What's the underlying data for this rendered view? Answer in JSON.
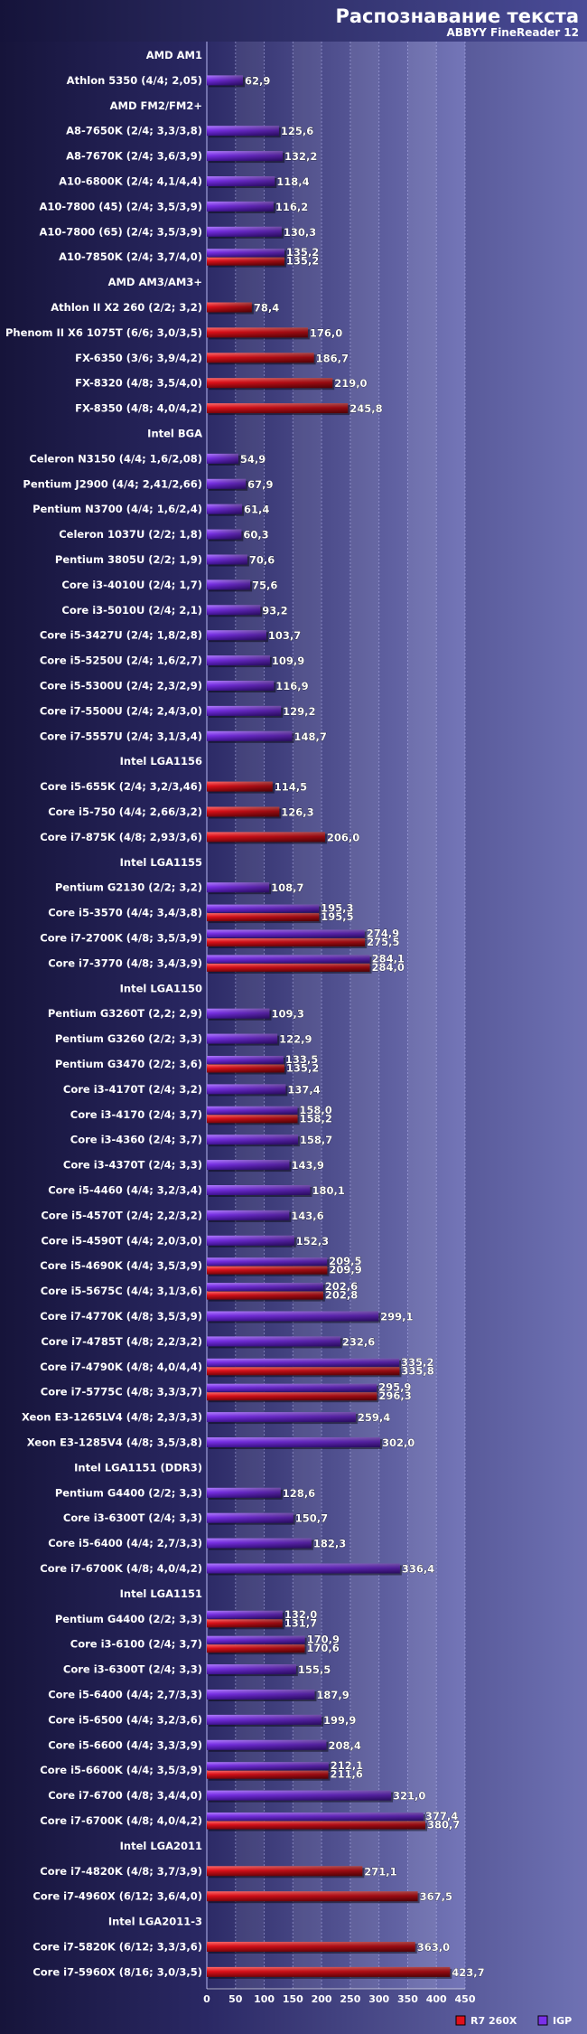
{
  "chart_data": {
    "type": "bar",
    "orientation": "horizontal",
    "title": "Распознавание текста",
    "subtitle": "ABBYY FineReader 12",
    "xlim": [
      0,
      450
    ],
    "xticks": [
      0,
      50,
      100,
      150,
      200,
      250,
      300,
      350,
      400,
      450
    ],
    "legend": [
      {
        "key": "r7",
        "name": "R7 260X",
        "color": "#e0101a"
      },
      {
        "key": "igp",
        "name": "IGP",
        "color": "#7a30e8"
      }
    ],
    "rows": [
      {
        "group": "AMD AM1"
      },
      {
        "label": "Athlon 5350 (4/4; 2,05)",
        "igp": 62.9
      },
      {
        "group": "AMD FM2/FM2+"
      },
      {
        "label": "A8-7650K (2/4; 3,3/3,8)",
        "igp": 125.6
      },
      {
        "label": "A8-7670K (2/4; 3,6/3,9)",
        "igp": 132.2
      },
      {
        "label": "A10-6800K (2/4; 4,1/4,4)",
        "igp": 118.4
      },
      {
        "label": "A10-7800 (45) (2/4; 3,5/3,9)",
        "igp": 116.2
      },
      {
        "label": "A10-7800 (65) (2/4; 3,5/3,9)",
        "igp": 130.3
      },
      {
        "label": "A10-7850K (2/4; 3,7/4,0)",
        "igp": 135.2,
        "r7": 135.2
      },
      {
        "group": "AMD AM3/AM3+"
      },
      {
        "label": "Athlon II X2 260 (2/2; 3,2)",
        "r7": 78.4
      },
      {
        "label": "Phenom II X6 1075T (6/6; 3,0/3,5)",
        "r7": 176.0
      },
      {
        "label": "FX-6350 (3/6; 3,9/4,2)",
        "r7": 186.7
      },
      {
        "label": "FX-8320 (4/8; 3,5/4,0)",
        "r7": 219.0
      },
      {
        "label": "FX-8350 (4/8; 4,0/4,2)",
        "r7": 245.8
      },
      {
        "group": "Intel BGA"
      },
      {
        "label": "Celeron N3150 (4/4; 1,6/2,08)",
        "igp": 54.9
      },
      {
        "label": "Pentium J2900 (4/4; 2,41/2,66)",
        "igp": 67.9
      },
      {
        "label": "Pentium N3700 (4/4; 1,6/2,4)",
        "igp": 61.4
      },
      {
        "label": "Celeron 1037U (2/2; 1,8)",
        "igp": 60.3
      },
      {
        "label": "Pentium 3805U (2/2; 1,9)",
        "igp": 70.6
      },
      {
        "label": "Core i3-4010U (2/4; 1,7)",
        "igp": 75.6
      },
      {
        "label": "Core i3-5010U (2/4; 2,1)",
        "igp": 93.2
      },
      {
        "label": "Core i5-3427U (2/4; 1,8/2,8)",
        "igp": 103.7
      },
      {
        "label": "Core i5-5250U (2/4; 1,6/2,7)",
        "igp": 109.9
      },
      {
        "label": "Core i5-5300U (2/4; 2,3/2,9)",
        "igp": 116.9
      },
      {
        "label": "Core i7-5500U (2/4; 2,4/3,0)",
        "igp": 129.2
      },
      {
        "label": "Core i7-5557U (2/4; 3,1/3,4)",
        "igp": 148.7
      },
      {
        "group": "Intel LGA1156"
      },
      {
        "label": "Core i5-655K (2/4; 3,2/3,46)",
        "r7": 114.5
      },
      {
        "label": "Core i5-750 (4/4; 2,66/3,2)",
        "r7": 126.3
      },
      {
        "label": "Core i7-875K (4/8; 2,93/3,6)",
        "r7": 206.0
      },
      {
        "group": "Intel LGA1155"
      },
      {
        "label": "Pentium G2130 (2/2; 3,2)",
        "igp": 108.7
      },
      {
        "label": "Core i5-3570 (4/4; 3,4/3,8)",
        "igp": 195.3,
        "r7": 195.5
      },
      {
        "label": "Core i7-2700K (4/8; 3,5/3,9)",
        "igp": 274.9,
        "r7": 275.5
      },
      {
        "label": "Core i7-3770 (4/8; 3,4/3,9)",
        "igp": 284.1,
        "r7": 284.0
      },
      {
        "group": "Intel LGA1150"
      },
      {
        "label": "Pentium G3260T (2,2; 2,9)",
        "igp": 109.3
      },
      {
        "label": "Pentium G3260 (2/2; 3,3)",
        "igp": 122.9
      },
      {
        "label": "Pentium G3470 (2/2; 3,6)",
        "igp": 133.5,
        "r7": 135.2
      },
      {
        "label": "Core i3-4170T (2/4; 3,2)",
        "igp": 137.4
      },
      {
        "label": "Core i3-4170 (2/4; 3,7)",
        "igp": 158.0,
        "r7": 158.2
      },
      {
        "label": "Core i3-4360 (2/4; 3,7)",
        "igp": 158.7
      },
      {
        "label": "Core i3-4370T (2/4; 3,3)",
        "igp": 143.9
      },
      {
        "label": "Core i5-4460 (4/4; 3,2/3,4)",
        "igp": 180.1
      },
      {
        "label": "Core i5-4570T (2/4; 2,2/3,2)",
        "igp": 143.6
      },
      {
        "label": "Core i5-4590T (4/4; 2,0/3,0)",
        "igp": 152.3
      },
      {
        "label": "Core i5-4690K (4/4; 3,5/3,9)",
        "igp": 209.5,
        "r7": 209.9
      },
      {
        "label": "Core i5-5675C (4/4; 3,1/3,6)",
        "igp": 202.6,
        "r7": 202.8
      },
      {
        "label": "Core i7-4770K (4/8; 3,5/3,9)",
        "igp": 299.1
      },
      {
        "label": "Core i7-4785T (4/8; 2,2/3,2)",
        "igp": 232.6
      },
      {
        "label": "Core i7-4790K (4/8; 4,0/4,4)",
        "igp": 335.2,
        "r7": 335.8
      },
      {
        "label": "Core i7-5775C (4/8; 3,3/3,7)",
        "igp": 295.9,
        "r7": 296.3
      },
      {
        "label": "Xeon E3-1265LV4 (4/8; 2,3/3,3)",
        "igp": 259.4
      },
      {
        "label": "Xeon E3-1285V4 (4/8; 3,5/3,8)",
        "igp": 302.0
      },
      {
        "group": "Intel LGA1151 (DDR3)"
      },
      {
        "label": "Pentium G4400 (2/2; 3,3)",
        "igp": 128.6
      },
      {
        "label": "Core i3-6300T (2/4; 3,3)",
        "igp": 150.7
      },
      {
        "label": "Core i5-6400 (4/4; 2,7/3,3)",
        "igp": 182.3
      },
      {
        "label": "Core i7-6700K (4/8; 4,0/4,2)",
        "igp": 336.4
      },
      {
        "group": "Intel LGA1151"
      },
      {
        "label": "Pentium G4400 (2/2; 3,3)",
        "igp": 132.0,
        "r7": 131.7
      },
      {
        "label": "Core i3-6100 (2/4; 3,7)",
        "igp": 170.9,
        "r7": 170.6
      },
      {
        "label": "Core i3-6300T (2/4; 3,3)",
        "igp": 155.5
      },
      {
        "label": "Core i5-6400  (4/4; 2,7/3,3)",
        "igp": 187.9
      },
      {
        "label": "Core i5-6500 (4/4; 3,2/3,6)",
        "igp": 199.9
      },
      {
        "label": "Core i5-6600 (4/4; 3,3/3,9)",
        "igp": 208.4
      },
      {
        "label": "Core i5-6600K (4/4; 3,5/3,9)",
        "igp": 212.1,
        "r7": 211.6
      },
      {
        "label": "Core i7-6700 (4/8; 3,4/4,0)",
        "igp": 321.0
      },
      {
        "label": "Core i7-6700K (4/8; 4,0/4,2)",
        "igp": 377.4,
        "r7": 380.7
      },
      {
        "group": "Intel LGA2011"
      },
      {
        "label": "Core i7-4820K (4/8; 3,7/3,9)",
        "r7": 271.1
      },
      {
        "label": "Core i7-4960X (6/12; 3,6/4,0)",
        "r7": 367.5
      },
      {
        "group": "Intel LGA2011-3"
      },
      {
        "label": "Core i7-5820K (6/12; 3,3/3,6)",
        "r7": 363.0
      },
      {
        "label": "Core i7-5960X (8/16; 3,0/3,5)",
        "r7": 423.7
      }
    ]
  }
}
